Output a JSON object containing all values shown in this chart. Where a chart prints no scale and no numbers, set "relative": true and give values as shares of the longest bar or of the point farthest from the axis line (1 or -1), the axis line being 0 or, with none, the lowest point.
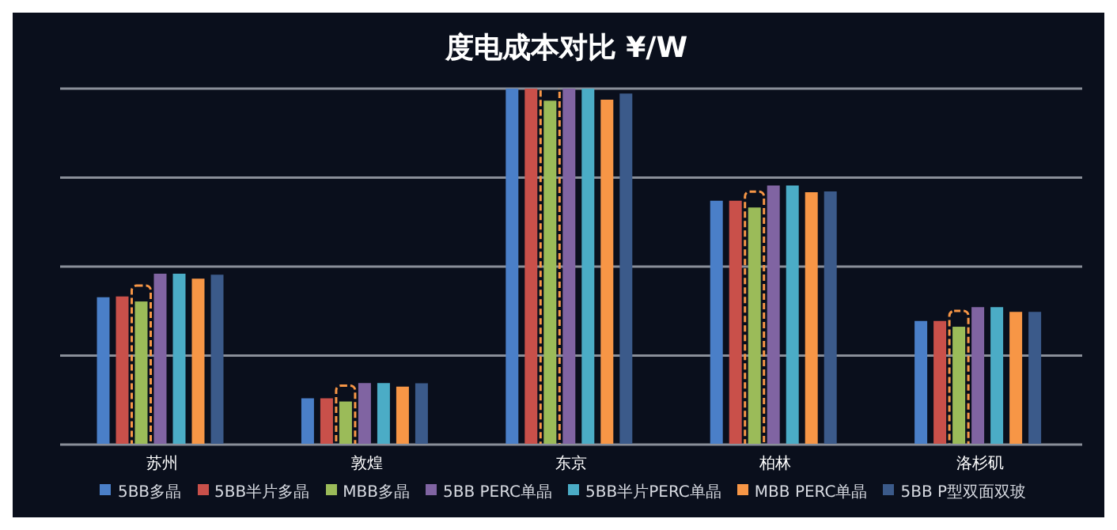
{
  "chart_data": {
    "type": "bar",
    "title": "度电成本对比 ¥/W",
    "relative": true,
    "grid": "y",
    "legend": "bottom",
    "categories": [
      "苏州",
      "敦煌",
      "东京",
      "柏林",
      "洛杉矶"
    ],
    "series": [
      {
        "name": "5BB多晶",
        "color": "#4a7fc8",
        "values": [
          0.414,
          0.13,
          1,
          0.685,
          0.347
        ]
      },
      {
        "name": "5BB半片多晶",
        "color": "#c9504a",
        "values": [
          0.416,
          0.13,
          1,
          0.685,
          0.347
        ]
      },
      {
        "name": "MBB多晶",
        "color": "#9bbb59",
        "values": [
          0.402,
          0.121,
          0.966,
          0.666,
          0.331
        ]
      },
      {
        "name": "5BB PERC单晶",
        "color": "#8064a2",
        "values": [
          0.48,
          0.173,
          1,
          0.728,
          0.386
        ]
      },
      {
        "name": "5BB半片PERC单晶",
        "color": "#4bacc6",
        "values": [
          0.48,
          0.173,
          1,
          0.728,
          0.386
        ]
      },
      {
        "name": "MBB PERC单晶",
        "color": "#f79646",
        "values": [
          0.466,
          0.163,
          0.969,
          0.709,
          0.373
        ]
      },
      {
        "name": "5BB P型双面双玻",
        "color": "#3b5a8a",
        "values": [
          0.477,
          0.172,
          0.986,
          0.711,
          0.373
        ]
      }
    ]
  }
}
